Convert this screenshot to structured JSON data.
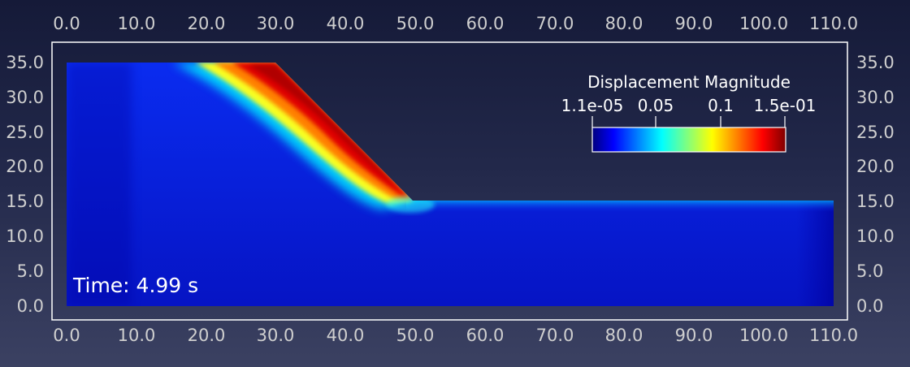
{
  "viewport": {
    "x_ticks_top": [
      "0.0",
      "10.0",
      "20.0",
      "30.0",
      "40.0",
      "50.0",
      "60.0",
      "70.0",
      "80.0",
      "90.0",
      "100.0",
      "110.0"
    ],
    "x_ticks_bottom": [
      "0.0",
      "10.0",
      "20.0",
      "30.0",
      "40.0",
      "50.0",
      "60.0",
      "70.0",
      "80.0",
      "90.0",
      "100.0",
      "110.0"
    ],
    "y_ticks_left": [
      "35.0",
      "30.0",
      "25.0",
      "20.0",
      "15.0",
      "10.0",
      "5.0",
      "0.0"
    ],
    "y_ticks_right": [
      "35.0",
      "30.0",
      "25.0",
      "20.0",
      "15.0",
      "10.0",
      "5.0",
      "0.0"
    ],
    "time_label": "Time: 4.99 s"
  },
  "legend": {
    "title": "Displacement Magnitude",
    "labels": [
      "1.1e-05",
      "0.05",
      "0.1",
      "1.5e-01"
    ],
    "colormap": "jet",
    "colors": [
      "#00007f",
      "#0000ff",
      "#00ffff",
      "#ffff00",
      "#ff0000",
      "#7f0000"
    ]
  },
  "colors": {
    "background_top": "#151a38",
    "background_bottom": "#3b4162",
    "axes_box": "#ffffff"
  }
}
